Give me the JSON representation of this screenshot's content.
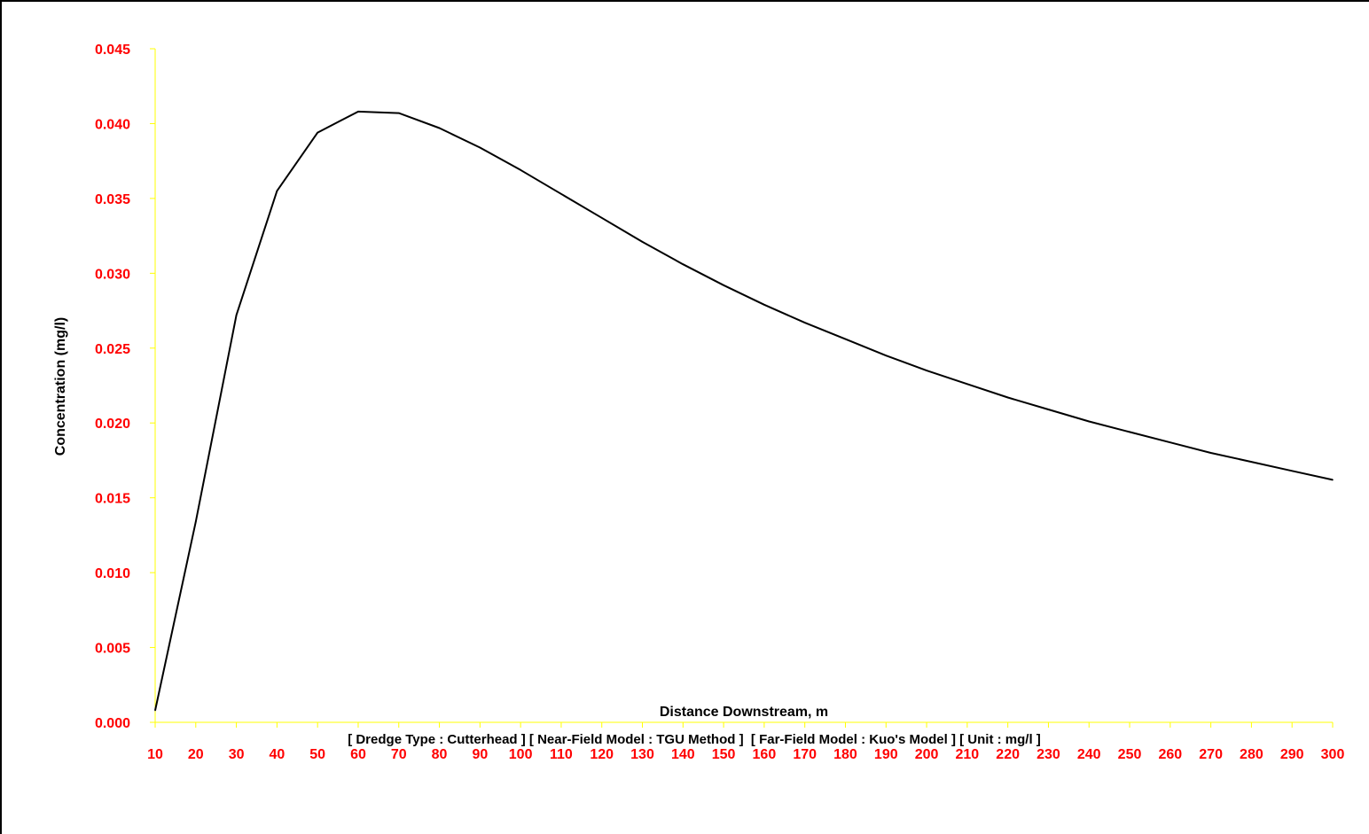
{
  "chart_data": {
    "type": "line",
    "title": "",
    "xlabel": "Distance Downstream, m",
    "ylabel": "Concentration (mg/l)",
    "footer": "[ Dredge Type : Cutterhead ] [ Near-Field Model : TGU Method ]  [ Far-Field Model : Kuo's Model ] [ Unit : mg/l ]",
    "x": [
      10,
      20,
      30,
      40,
      50,
      60,
      70,
      80,
      90,
      100,
      110,
      120,
      130,
      140,
      150,
      160,
      170,
      180,
      190,
      200,
      210,
      220,
      230,
      240,
      250,
      260,
      270,
      280,
      290,
      300
    ],
    "x_tick_labels": [
      "10",
      "20",
      "30",
      "40",
      "50",
      "60",
      "70",
      "80",
      "90",
      "100",
      "110",
      "120",
      "130",
      "140",
      "150",
      "160",
      "170",
      "180",
      "190",
      "200",
      "210",
      "220",
      "230",
      "240",
      "250",
      "260",
      "270",
      "280",
      "290",
      "300"
    ],
    "y_tick_labels": [
      "0.000",
      "0.005",
      "0.010",
      "0.015",
      "0.020",
      "0.025",
      "0.030",
      "0.035",
      "0.040",
      "0.045"
    ],
    "series": [
      {
        "values": [
          0.0008,
          0.0134,
          0.0272,
          0.0355,
          0.0394,
          0.0408,
          0.0407,
          0.0397,
          0.0384,
          0.0369,
          0.0353,
          0.0337,
          0.0321,
          0.0306,
          0.0292,
          0.0279,
          0.0267,
          0.0256,
          0.0245,
          0.0235,
          0.0226,
          0.0217,
          0.0209,
          0.0201,
          0.0194,
          0.0187,
          0.018,
          0.0174,
          0.0168,
          0.0162
        ]
      }
    ],
    "xlim": [
      10,
      300
    ],
    "ylim": [
      0,
      0.045
    ],
    "grid": false,
    "legend": "none",
    "colors": {
      "tick_labels": "#ff0000",
      "axis_lines": "#ffff00",
      "series_line": "#000000"
    }
  }
}
